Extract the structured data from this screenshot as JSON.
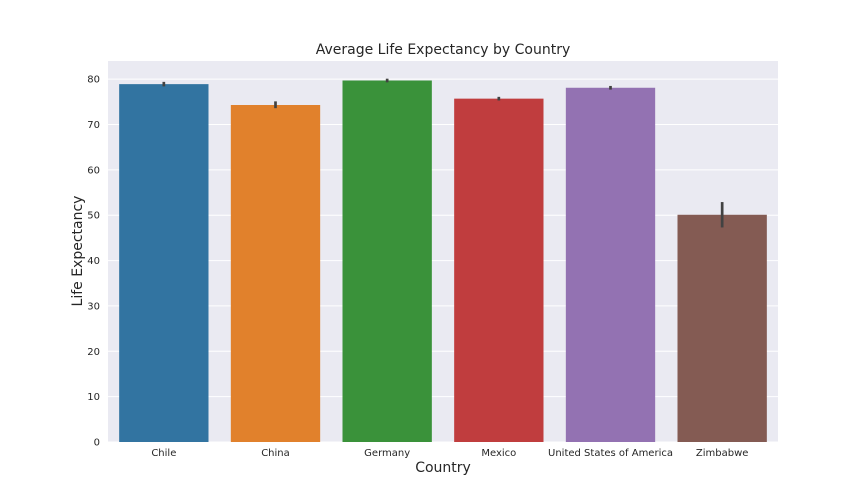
{
  "chart_data": {
    "type": "bar",
    "title": "Average Life Expectancy by Country",
    "xlabel": "Country",
    "ylabel": "Life Expectancy",
    "categories": [
      "Chile",
      "China",
      "Germany",
      "Mexico",
      "United States of America",
      "Zimbabwe"
    ],
    "values": [
      78.9,
      74.3,
      79.7,
      75.7,
      78.1,
      50.1
    ],
    "error_bars": [
      [
        78.4,
        79.4
      ],
      [
        73.6,
        75.1
      ],
      [
        79.3,
        80.1
      ],
      [
        75.3,
        76.1
      ],
      [
        77.7,
        78.5
      ],
      [
        47.3,
        52.9
      ]
    ],
    "ylim": [
      0,
      84
    ],
    "yticks": [
      0,
      10,
      20,
      30,
      40,
      50,
      60,
      70,
      80
    ],
    "colors": [
      "#3274a1",
      "#e1812c",
      "#3a923a",
      "#c03d3e",
      "#9372b2",
      "#845b53"
    ],
    "background": "#eaeaf2",
    "grid": true
  }
}
